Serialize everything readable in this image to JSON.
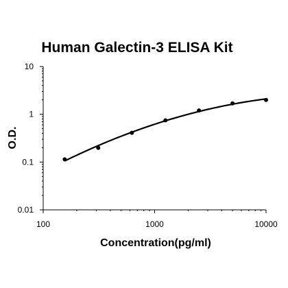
{
  "chart_data": {
    "type": "scatter",
    "title": "Human Galectin-3 ELISA Kit",
    "xlabel": "Concentration(pg/ml)",
    "ylabel": "O.D.",
    "xscale": "log",
    "yscale": "log",
    "xlim": [
      100,
      10000
    ],
    "ylim": [
      0.01,
      10
    ],
    "x_ticks": [
      "100",
      "1000",
      "10000"
    ],
    "y_ticks": [
      "0.01",
      "0.1",
      "1",
      "10"
    ],
    "grid": false,
    "legend": "none",
    "series": [
      {
        "x": [
          156,
          312,
          625,
          1250,
          2500,
          5000,
          10000
        ],
        "y": [
          0.114,
          0.198,
          0.41,
          0.748,
          1.2,
          1.69,
          2.0
        ],
        "fit_curve": true
      }
    ],
    "colors": {
      "line": "#000000",
      "marker": "#000000",
      "axis": "#000000"
    }
  }
}
